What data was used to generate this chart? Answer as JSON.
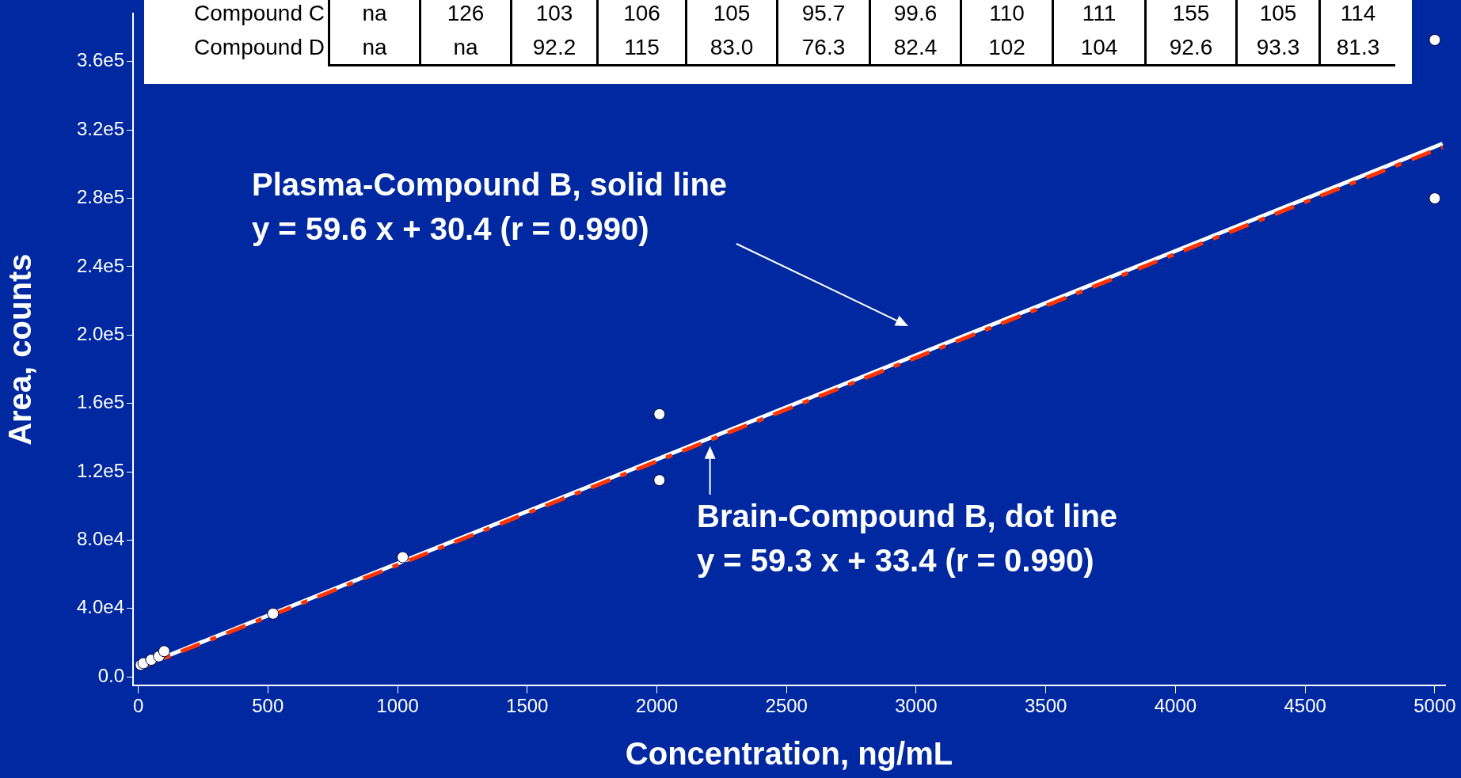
{
  "chart_data": [
    {
      "type": "other",
      "y_categories": [
        "Compound C",
        "Compound D"
      ],
      "cell_labels": [
        [
          "na",
          "126",
          "103",
          "106",
          "105",
          "95.7",
          "99.6",
          "110",
          "111",
          "155",
          "105",
          "114"
        ],
        [
          "na",
          "na",
          "92.2",
          "115",
          "83.0",
          "76.3",
          "82.4",
          "102",
          "104",
          "92.6",
          "93.3",
          "81.3"
        ]
      ]
    },
    {
      "type": "scatter",
      "xlabel": "Concentration, ng/mL",
      "ylabel": "Area, counts",
      "xlim": [
        -20,
        5040
      ],
      "xticks": [
        0,
        500,
        1000,
        1500,
        2000,
        2500,
        3000,
        3500,
        4000,
        4500,
        5000
      ],
      "ylim": [
        -5000,
        388000
      ],
      "yticks": [
        {
          "value": 0,
          "label": "0.0"
        },
        {
          "value": 40000,
          "label": "4.0e4"
        },
        {
          "value": 80000,
          "label": "8.0e4"
        },
        {
          "value": 120000,
          "label": "1.2e5"
        },
        {
          "value": 160000,
          "label": "1.6e5"
        },
        {
          "value": 200000,
          "label": "2.0e5"
        },
        {
          "value": 240000,
          "label": "2.4e5"
        },
        {
          "value": 280000,
          "label": "2.8e5"
        },
        {
          "value": 320000,
          "label": "3.2e5"
        },
        {
          "value": 360000,
          "label": "3.6e5"
        }
      ],
      "grid": false,
      "legend": false,
      "series": [
        {
          "type": "scatter",
          "color": "#ffffff",
          "marker": "circle",
          "x": [
            10,
            20,
            50,
            80,
            100,
            520,
            1020,
            2010,
            2010,
            5000,
            5000
          ],
          "values": [
            7000,
            8000,
            10000,
            12000,
            15000,
            37000,
            70000,
            153700,
            115100,
            372700,
            280000
          ]
        },
        {
          "type": "line",
          "color": "#ffffff",
          "line_style": "solid",
          "marker": "none",
          "x": [
            0,
            5030
          ],
          "values": [
            5400,
            312000
          ]
        },
        {
          "type": "line",
          "color": "#ff3300",
          "line_style": "dashed",
          "marker": "none",
          "x": [
            0,
            5030
          ],
          "values": [
            4800,
            310000
          ]
        }
      ],
      "annotations": [
        "Plasma-Compound B, solid line",
        "y = 59.6 x + 30.4 (r = 0.990)",
        {
          "text": "Brain-Compound B, dot line",
          "x": 2205,
          "y": 135000
        },
        "y = 59.3 x + 33.4 (r = 0.990)"
      ]
    }
  ]
}
